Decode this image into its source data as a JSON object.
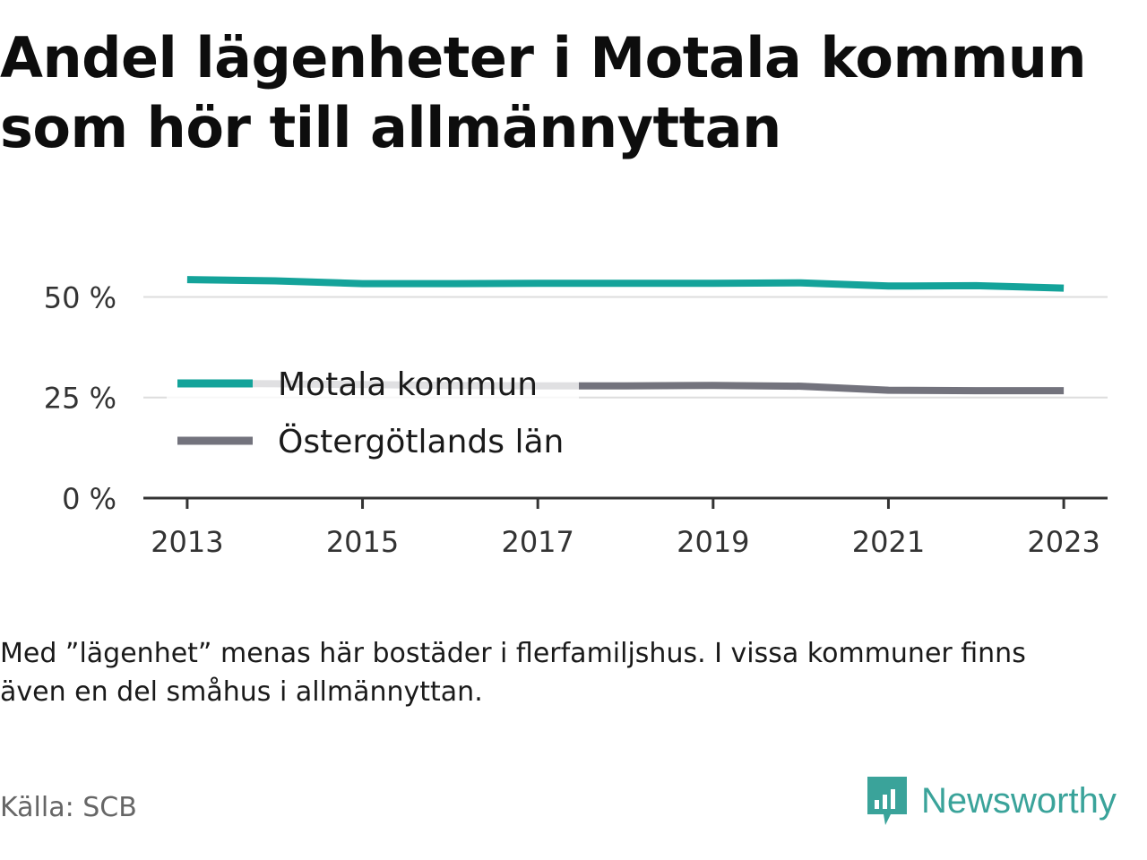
{
  "title": {
    "line1": "Andel lägenheter i Motala kommun",
    "line2": "som hör till allmännyttan"
  },
  "note": {
    "line1": "Med ”lägenhet” menas här bostäder i flerfamiljshus. I vissa kommuner finns",
    "line2": "även en del småhus i allmännyttan."
  },
  "source": "Källa: SCB",
  "brand": {
    "name": "Newsworthy",
    "icon": "newsworthy-logo-icon",
    "color": "#3aa39a"
  },
  "chart_data": {
    "type": "line",
    "title": "Andel lägenheter i Motala kommun som hör till allmännyttan",
    "x": [
      2013,
      2014,
      2015,
      2016,
      2017,
      2018,
      2019,
      2020,
      2021,
      2022,
      2023
    ],
    "xticks": [
      "2013",
      "2015",
      "2017",
      "2019",
      "2021",
      "2023"
    ],
    "yticks": [
      {
        "value": 0,
        "label": "0 %"
      },
      {
        "value": 25,
        "label": "25 %"
      },
      {
        "value": 50,
        "label": "50 %"
      }
    ],
    "ylim": [
      0,
      57
    ],
    "xlim": [
      2012.5,
      2023.5
    ],
    "grid": true,
    "legend": "inside-left",
    "series": [
      {
        "name": "Motala kommun",
        "color": "#14a39a",
        "values": [
          54.3,
          54.0,
          53.3,
          53.3,
          53.4,
          53.4,
          53.4,
          53.5,
          52.7,
          52.8,
          52.2
        ]
      },
      {
        "name": "Östergötlands län",
        "color": "#73737d",
        "values": [
          28.5,
          28.4,
          28.2,
          28.0,
          27.9,
          27.9,
          28.0,
          27.8,
          26.8,
          26.7,
          26.7
        ]
      }
    ]
  }
}
